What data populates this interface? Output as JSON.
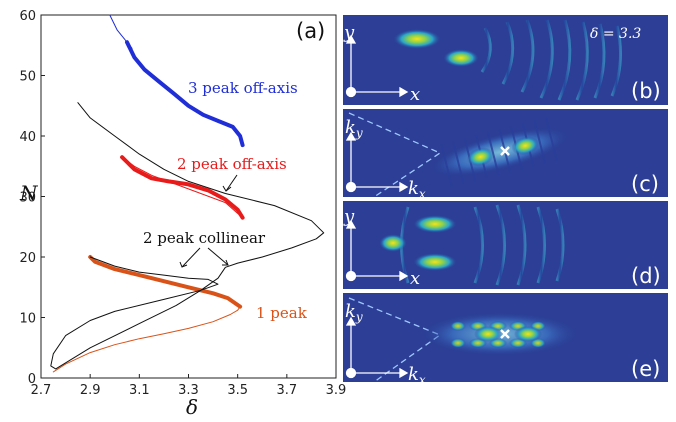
{
  "chart_data": {
    "type": "line",
    "xlabel": "δ",
    "ylabel": "N",
    "xlim": [
      2.7,
      3.9
    ],
    "ylim": [
      0,
      60
    ],
    "x_ticks": [
      "2.7",
      "2.9",
      "3.1",
      "3.3",
      "3.5",
      "3.7",
      "3.9"
    ],
    "y_ticks": [
      "0",
      "10",
      "20",
      "30",
      "40",
      "50",
      "60"
    ],
    "panel_label": "(a)",
    "colors": {
      "one_peak": "#d95319",
      "two_off": "#e81b1b",
      "three_off": "#1f2ed6",
      "thin": "#111111"
    },
    "series": [
      {
        "name": "1 peak",
        "style": "thin",
        "points": [
          [
            2.75,
            1
          ],
          [
            2.8,
            2.3
          ],
          [
            2.9,
            4.2
          ],
          [
            3.0,
            5.5
          ],
          [
            3.1,
            6.5
          ],
          [
            3.2,
            7.3
          ],
          [
            3.3,
            8.2
          ],
          [
            3.4,
            9.3
          ],
          [
            3.47,
            10.5
          ],
          [
            3.5,
            11.2
          ],
          [
            3.51,
            11.8
          ]
        ]
      },
      {
        "name": "1 peak",
        "style": "thick",
        "points": [
          [
            3.51,
            11.8
          ],
          [
            3.46,
            13.2
          ],
          [
            3.4,
            14.0
          ],
          [
            3.3,
            15.0
          ],
          [
            3.2,
            16.0
          ],
          [
            3.1,
            17.0
          ],
          [
            3.0,
            18.0
          ],
          [
            2.92,
            19.2
          ],
          [
            2.9,
            20.0
          ]
        ]
      },
      {
        "name": "2 peak collinear",
        "points": [
          [
            2.9,
            20.0
          ],
          [
            3.0,
            18.5
          ],
          [
            3.1,
            17.5
          ],
          [
            3.2,
            17.0
          ],
          [
            3.3,
            16.5
          ],
          [
            3.38,
            16.3
          ],
          [
            3.42,
            15.5
          ],
          [
            3.35,
            14.5
          ],
          [
            3.2,
            13.0
          ],
          [
            3.0,
            11.0
          ],
          [
            2.9,
            9.5
          ],
          [
            2.8,
            7.0
          ],
          [
            2.75,
            4.0
          ],
          [
            2.74,
            2.0
          ],
          [
            2.76,
            1.5
          ],
          [
            2.9,
            5.0
          ],
          [
            3.1,
            9.0
          ],
          [
            3.25,
            12.0
          ],
          [
            3.35,
            14.5
          ],
          [
            3.42,
            16.5
          ],
          [
            3.45,
            18.3
          ],
          [
            3.5,
            19.0
          ],
          [
            3.6,
            20.0
          ],
          [
            3.72,
            21.5
          ],
          [
            3.82,
            23.0
          ],
          [
            3.85,
            24.0
          ],
          [
            3.8,
            26.0
          ],
          [
            3.65,
            28.5
          ],
          [
            3.45,
            30.5
          ],
          [
            3.3,
            32.5
          ],
          [
            3.2,
            34.5
          ],
          [
            3.1,
            37.0
          ],
          [
            3.0,
            40.0
          ],
          [
            2.9,
            43.0
          ],
          [
            2.85,
            45.5
          ]
        ]
      },
      {
        "name": "2 peak off-axis",
        "style": "thick",
        "points": [
          [
            3.03,
            36.5
          ],
          [
            3.08,
            34.5
          ],
          [
            3.15,
            33.0
          ],
          [
            3.22,
            32.5
          ],
          [
            3.3,
            32.0
          ],
          [
            3.38,
            31.0
          ],
          [
            3.45,
            29.5
          ],
          [
            3.5,
            27.8
          ],
          [
            3.52,
            26.5
          ]
        ]
      },
      {
        "name": "2 peak off-axis",
        "style": "thin",
        "points": [
          [
            3.52,
            26.5
          ],
          [
            3.45,
            29.0
          ],
          [
            3.35,
            30.5
          ],
          [
            3.25,
            32.0
          ],
          [
            3.15,
            33.5
          ],
          [
            3.08,
            35.0
          ],
          [
            3.03,
            36.5
          ]
        ]
      },
      {
        "name": "3 peak off-axis",
        "style": "thin",
        "points": [
          [
            2.98,
            60.0
          ],
          [
            3.01,
            57.5
          ],
          [
            3.04,
            56.0
          ],
          [
            3.07,
            54.5
          ]
        ]
      },
      {
        "name": "3 peak off-axis",
        "style": "thick",
        "points": [
          [
            3.05,
            55.5
          ],
          [
            3.08,
            53.0
          ],
          [
            3.12,
            51.0
          ],
          [
            3.18,
            49.0
          ],
          [
            3.24,
            47.0
          ],
          [
            3.3,
            45.0
          ],
          [
            3.36,
            43.5
          ],
          [
            3.42,
            42.5
          ],
          [
            3.48,
            41.5
          ],
          [
            3.51,
            40.0
          ],
          [
            3.52,
            38.5
          ]
        ]
      }
    ],
    "annotations": [
      {
        "text": "3 peak off-axis",
        "color": "#1f2ed6"
      },
      {
        "text": "2 peak off-axis",
        "color": "#e81b1b"
      },
      {
        "text": "2 peak collinear",
        "color": "#111111"
      },
      {
        "text": "1 peak",
        "color": "#d95319"
      }
    ]
  },
  "panels": {
    "b": {
      "label": "(b)",
      "axis1": "y",
      "axis2": "x",
      "delta": "δ = 3.3"
    },
    "c": {
      "label": "(c)",
      "axis1": "k",
      "axis1_sub": "y",
      "axis2": "k",
      "axis2_sub": "x"
    },
    "d": {
      "label": "(d)",
      "axis1": "y",
      "axis2": "x"
    },
    "e": {
      "label": "(e)",
      "axis1": "k",
      "axis1_sub": "y",
      "axis2": "k",
      "axis2_sub": "x"
    }
  }
}
